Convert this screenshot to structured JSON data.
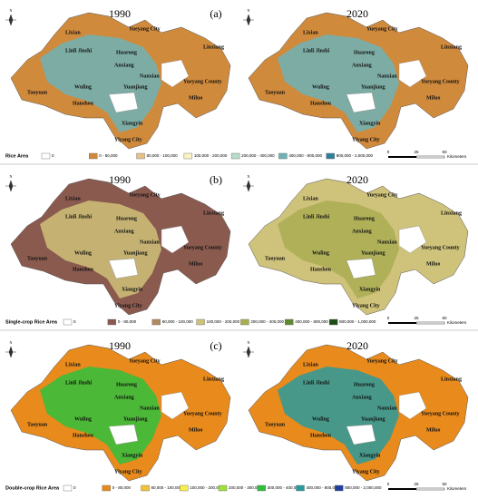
{
  "panels": [
    {
      "tag": "(a)",
      "years": [
        "1990",
        "2020"
      ],
      "legend": {
        "title": "Rice Area",
        "classes": [
          {
            "label": "0",
            "color": "#ffffff"
          },
          {
            "label": "0 - 80,000",
            "color": "#d08a3c"
          },
          {
            "label": "80,000 - 100,000",
            "color": "#e8c088"
          },
          {
            "label": "100,000 - 200,000",
            "color": "#fbf3c4"
          },
          {
            "label": "200,000 - 400,000",
            "color": "#b9dccb"
          },
          {
            "label": "400,000 - 800,000",
            "color": "#6fb2b6"
          },
          {
            "label": "800,000 - 2,000,000",
            "color": "#2e7f9a"
          }
        ]
      }
    },
    {
      "tag": "(b)",
      "years": [
        "1990",
        "2020"
      ],
      "legend": {
        "title": "Single-crop Rice Area",
        "classes": [
          {
            "label": "0",
            "color": "#ffffff"
          },
          {
            "label": "0 - 80,000",
            "color": "#8a5a4e"
          },
          {
            "label": "80,000 - 100,000",
            "color": "#b08a60"
          },
          {
            "label": "100,000 - 200,000",
            "color": "#cfc27a"
          },
          {
            "label": "200,000 - 400,000",
            "color": "#a9ad52"
          },
          {
            "label": "400,000 - 800,000",
            "color": "#5f8a2e"
          },
          {
            "label": "800,000 - 1,000,000",
            "color": "#1f4d14"
          }
        ]
      }
    },
    {
      "tag": "(c)",
      "years": [
        "1990",
        "2020"
      ],
      "legend": {
        "title": "Double-crop Rice Area",
        "classes": [
          {
            "label": "0",
            "color": "#ffffff"
          },
          {
            "label": "0 - 80,000",
            "color": "#e88a1c"
          },
          {
            "label": "80,000 - 100,000",
            "color": "#f3c23a"
          },
          {
            "label": "100,000 - 200,000",
            "color": "#f7ef4a"
          },
          {
            "label": "200,000 - 300,000",
            "color": "#9ee03a"
          },
          {
            "label": "300,000 - 400,000",
            "color": "#2fbf3c"
          },
          {
            "label": "400,000 - 800,000",
            "color": "#2a9a9c"
          },
          {
            "label": "800,000 - 2,000,000",
            "color": "#1f3f9a"
          }
        ]
      }
    }
  ],
  "north": "N",
  "place_names": [
    "Lixian",
    "Linli Jinshi",
    "Huarong",
    "Yueyang City",
    "Linxiang",
    "Anxiang",
    "Nanxian",
    "Yueyang County",
    "Taoyuan",
    "Wuling",
    "Hanshou",
    "Yuanjiang",
    "Miluo",
    "Xiangyin",
    "Yiyang City"
  ],
  "scale": {
    "ticks": [
      "0",
      "25",
      "50"
    ],
    "unit": "Kilometers"
  }
}
